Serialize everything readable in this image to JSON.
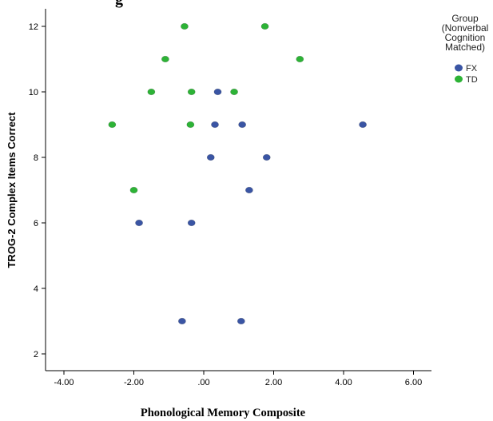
{
  "chart_data": {
    "type": "scatter",
    "title": "g",
    "xlabel": "Phonological Memory Composite",
    "ylabel": "TROG-2 Complex Items Correct",
    "xlim": [
      -4.8,
      6.5
    ],
    "ylim": [
      1.5,
      12.5
    ],
    "x_ticks": [
      -4,
      -2,
      0,
      2,
      4,
      6
    ],
    "x_tick_labels": [
      "-4.00",
      "-2.00",
      ".00",
      "2.00",
      "4.00",
      "6.00"
    ],
    "y_ticks": [
      2,
      4,
      6,
      8,
      10,
      12
    ],
    "y_tick_labels": [
      "2",
      "4",
      "6",
      "8",
      "10",
      "12"
    ],
    "grid": false,
    "legend": {
      "placement": "top-right",
      "title_lines": [
        "Group",
        "(Nonverbal",
        "Cognition",
        "Matched)"
      ]
    },
    "series": [
      {
        "name": "FX",
        "color": "#3a55a4",
        "points": [
          {
            "x": 0.4,
            "y": 10
          },
          {
            "x": 0.32,
            "y": 9
          },
          {
            "x": 1.1,
            "y": 9
          },
          {
            "x": 4.55,
            "y": 9
          },
          {
            "x": 0.2,
            "y": 8
          },
          {
            "x": 1.8,
            "y": 8
          },
          {
            "x": 1.3,
            "y": 7
          },
          {
            "x": -1.85,
            "y": 6
          },
          {
            "x": -0.35,
            "y": 6
          },
          {
            "x": -0.62,
            "y": 3
          },
          {
            "x": 1.07,
            "y": 3
          }
        ]
      },
      {
        "name": "TD",
        "color": "#2db336",
        "points": [
          {
            "x": -0.55,
            "y": 12
          },
          {
            "x": 1.75,
            "y": 12
          },
          {
            "x": -1.1,
            "y": 11
          },
          {
            "x": 2.75,
            "y": 11
          },
          {
            "x": -1.5,
            "y": 10
          },
          {
            "x": -0.35,
            "y": 10
          },
          {
            "x": 0.87,
            "y": 10
          },
          {
            "x": -2.62,
            "y": 9
          },
          {
            "x": -0.38,
            "y": 9
          },
          {
            "x": -2.0,
            "y": 7
          }
        ]
      }
    ]
  }
}
